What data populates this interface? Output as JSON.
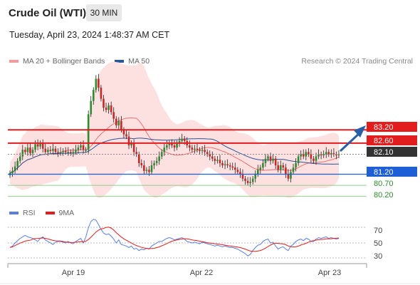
{
  "header": {
    "instrument": "Crude Oil (WTI)",
    "timeframe": "30 MIN",
    "datetime": "Tuesday, April 23, 2024 1:48:37 AM CET"
  },
  "legend": {
    "ma20_label": "MA 20 + Bollinger Bands",
    "ma50_label": "MA 50",
    "copyright": "Research © 2024 Trading Central",
    "rsi_label": "RSI",
    "rsi_ma_label": "9MA"
  },
  "colors": {
    "ma20": "#f07070",
    "ma50": "#2a5599",
    "resistance": "#e11d1d",
    "support_blue": "#1f5fd6",
    "support_green": "#2e8b2e",
    "current": "#333333",
    "arrow": "#2a5fa8",
    "rsi": "#5b7fe0",
    "rsi_ma": "#e11d1d"
  },
  "levels": {
    "r2": "83.20",
    "r1": "82.60",
    "current": "82.10",
    "s1": "81.20",
    "s2": "80.70",
    "s3": "80.20"
  },
  "x_axis": {
    "labels": [
      "Apr 19",
      "Apr 22",
      "Apr 23"
    ]
  },
  "rsi_axis": {
    "labels": [
      "70",
      "50",
      "30"
    ]
  },
  "chart_data": [
    {
      "type": "candlestick",
      "series": [
        {
          "name": "MA 20 + Bollinger Bands"
        },
        {
          "name": "MA 50"
        }
      ],
      "close": [
        81.25,
        81.35,
        81.55,
        81.8,
        82.0,
        82.3,
        82.2,
        82.4,
        82.15,
        82.3,
        82.55,
        82.45,
        82.6,
        82.35,
        82.2,
        82.3,
        82.25,
        82.35,
        82.2,
        82.15,
        82.2,
        82.25,
        82.2,
        82.2,
        82.15,
        82.2,
        82.3,
        82.4,
        82.5,
        82.3,
        82.3,
        83.9,
        84.5,
        85.0,
        85.5,
        85.1,
        84.6,
        84.2,
        84.1,
        84.3,
        84.0,
        83.7,
        83.4,
        83.6,
        83.2,
        83.0,
        82.9,
        82.5,
        82.6,
        82.2,
        82.1,
        81.7,
        81.6,
        81.35,
        81.4,
        81.3,
        81.6,
        81.7,
        81.8,
        82.0,
        82.2,
        82.4,
        82.5,
        82.6,
        82.5,
        82.4,
        82.6,
        82.7,
        82.8,
        82.7,
        82.5,
        82.4,
        82.3,
        82.35,
        82.3,
        82.25,
        82.3,
        82.2,
        82.1,
        82.0,
        81.9,
        81.8,
        81.85,
        81.7,
        81.6,
        81.65,
        81.6,
        81.55,
        81.5,
        81.4,
        81.3,
        81.2,
        81.0,
        80.9,
        80.8,
        80.85,
        81.0,
        81.2,
        81.4,
        81.5,
        81.7,
        81.9,
        82.0,
        81.8,
        81.9,
        81.6,
        81.4,
        81.6,
        81.5,
        81.2,
        81.0,
        81.3,
        81.5,
        81.7,
        82.0,
        82.1,
        82.0,
        82.2,
        82.1,
        81.9,
        81.8,
        82.0,
        82.1,
        82.05,
        82.1,
        82.2,
        82.1,
        82.15,
        82.1,
        82.05,
        82.1
      ],
      "rsi": [
        44,
        46,
        50,
        53,
        56,
        58,
        60,
        58,
        57,
        56,
        54,
        52,
        56,
        58,
        54,
        52,
        50,
        48,
        51,
        52,
        52,
        51,
        50,
        52,
        50,
        49,
        52,
        54,
        56,
        50,
        58,
        70,
        78,
        81,
        80,
        74,
        68,
        63,
        61,
        62,
        59,
        55,
        50,
        54,
        48,
        47,
        46,
        44,
        46,
        42,
        43,
        40,
        42,
        41,
        43,
        42,
        46,
        48,
        50,
        52,
        52,
        54,
        56,
        57,
        56,
        54,
        55,
        56,
        57,
        55,
        52,
        51,
        50,
        51,
        50,
        49,
        51,
        50,
        49,
        48,
        47,
        46,
        47,
        46,
        45,
        46,
        45,
        44,
        44,
        43,
        42,
        40,
        38,
        36,
        33,
        35,
        40,
        44,
        47,
        48,
        52,
        54,
        55,
        50,
        51,
        46,
        42,
        44,
        45,
        42,
        40,
        46,
        48,
        52,
        54,
        55,
        53,
        56,
        55,
        52,
        52,
        55,
        57,
        56,
        57,
        58,
        56,
        57,
        56,
        55,
        56
      ],
      "ylim": [
        79.9,
        86.0
      ]
    }
  ]
}
